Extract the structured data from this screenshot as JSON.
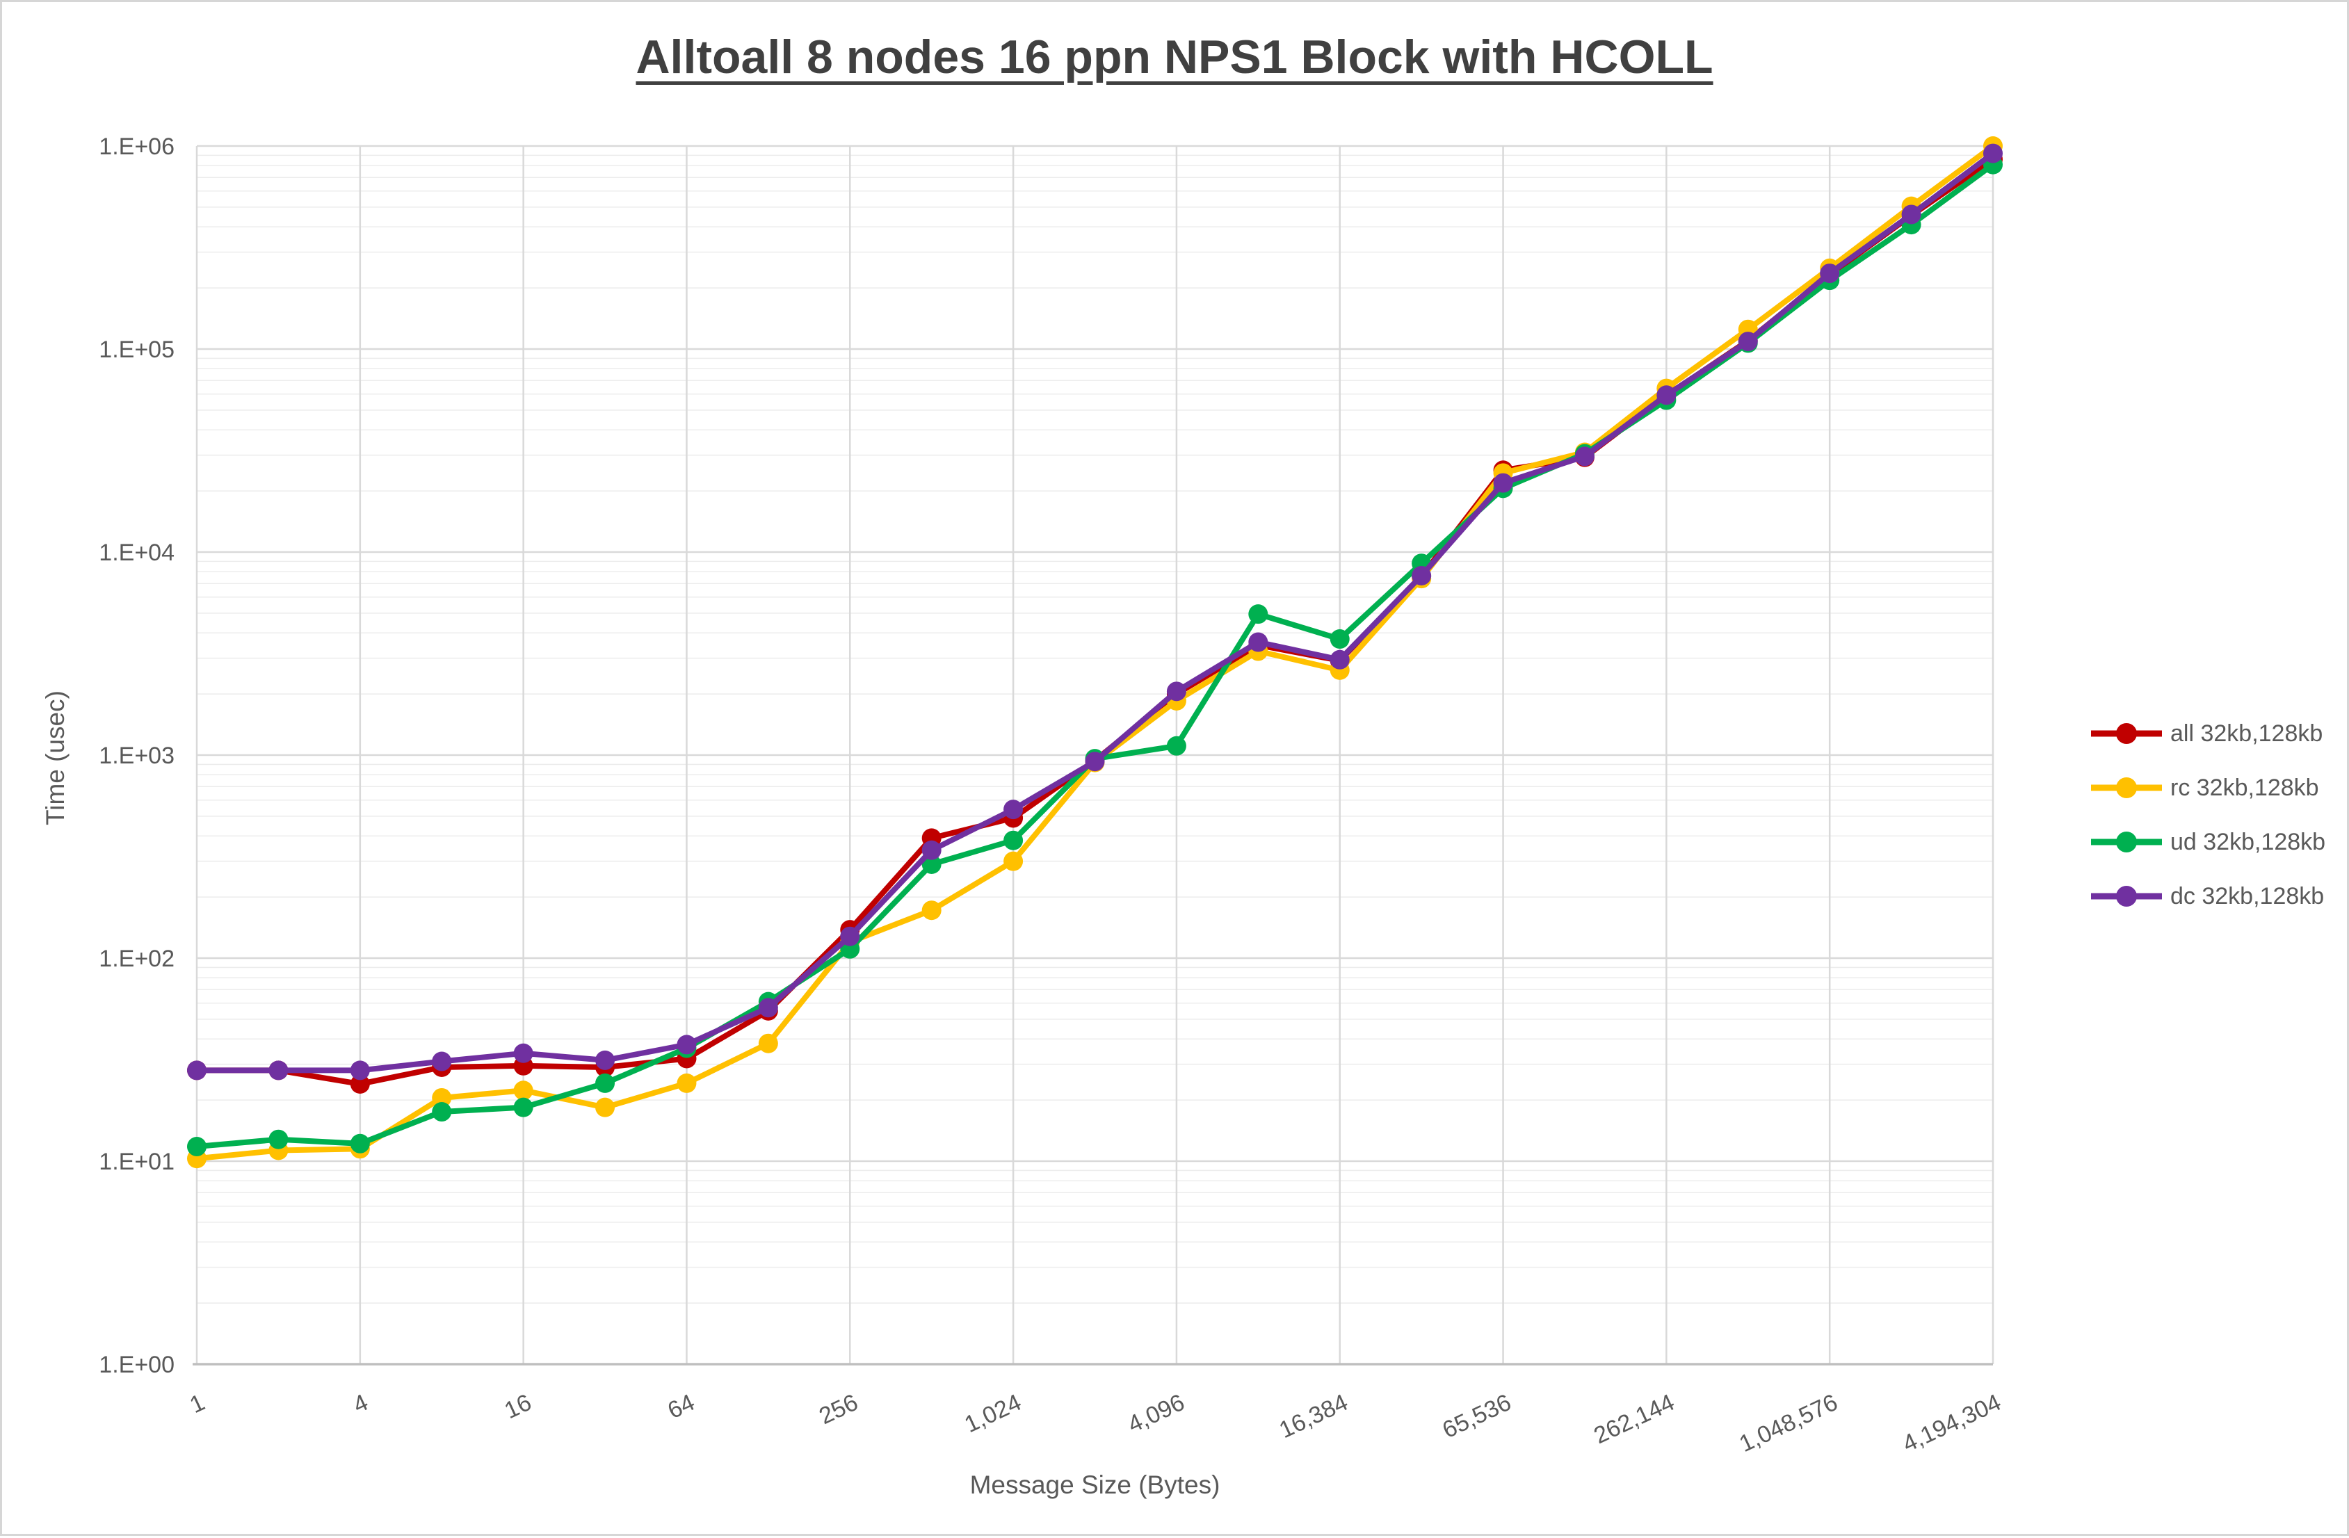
{
  "chart_data": {
    "type": "line",
    "title": "Alltoall 8 nodes 16 ppn NPS1 Block with HCOLL",
    "xlabel": "Message Size (Bytes)",
    "ylabel": "Time (usec)",
    "x_scale": "log2",
    "y_scale": "log10",
    "ylim": [
      1,
      1000000
    ],
    "y_tick_labels": [
      "1.E+00",
      "1.E+01",
      "1.E+02",
      "1.E+03",
      "1.E+04",
      "1.E+05",
      "1.E+06"
    ],
    "x_tick_labels": [
      "1",
      "4",
      "16",
      "64",
      "256",
      "1,024",
      "4,096",
      "16,384",
      "65,536",
      "262,144",
      "1,048,576",
      "4,194,304"
    ],
    "x": [
      1,
      2,
      4,
      8,
      16,
      32,
      64,
      128,
      256,
      512,
      1024,
      2048,
      4096,
      8192,
      16384,
      32768,
      65536,
      131072,
      262144,
      524288,
      1048576,
      2097152,
      4194304
    ],
    "grid": true,
    "legend_position": "right",
    "series": [
      {
        "id": "all",
        "name": "all 32kb,128kb",
        "color": "#C00000",
        "values": [
          28,
          28,
          24,
          29,
          29.5,
          29,
          32,
          55,
          138,
          390,
          490,
          940,
          2000,
          3480,
          2920,
          7600,
          25300,
          29300,
          59000,
          110000,
          232000,
          455000,
          860000
        ]
      },
      {
        "id": "rc",
        "name": "rc 32kb,128kb",
        "color": "#FFC000",
        "values": [
          10.3,
          11.3,
          11.5,
          20.5,
          22.3,
          18.4,
          24.2,
          38,
          120,
          172,
          300,
          920,
          1850,
          3250,
          2620,
          7400,
          24500,
          31000,
          64000,
          125000,
          250000,
          505000,
          1000000
        ]
      },
      {
        "id": "ud",
        "name": "ud 32kb,128kb",
        "color": "#00B050",
        "values": [
          11.8,
          12.8,
          12.2,
          17.5,
          18.4,
          24.2,
          36,
          61,
          111,
          290,
          380,
          960,
          1110,
          4950,
          3730,
          8800,
          20600,
          30500,
          56000,
          107000,
          218000,
          410000,
          810000
        ]
      },
      {
        "id": "dc",
        "name": "dc 32kb,128kb",
        "color": "#7030A0",
        "values": [
          28,
          28,
          28,
          31,
          34,
          31.4,
          37.5,
          57,
          128,
          340,
          540,
          930,
          2060,
          3600,
          2950,
          7650,
          21900,
          29600,
          59300,
          109000,
          236000,
          460000,
          920000
        ]
      }
    ]
  }
}
